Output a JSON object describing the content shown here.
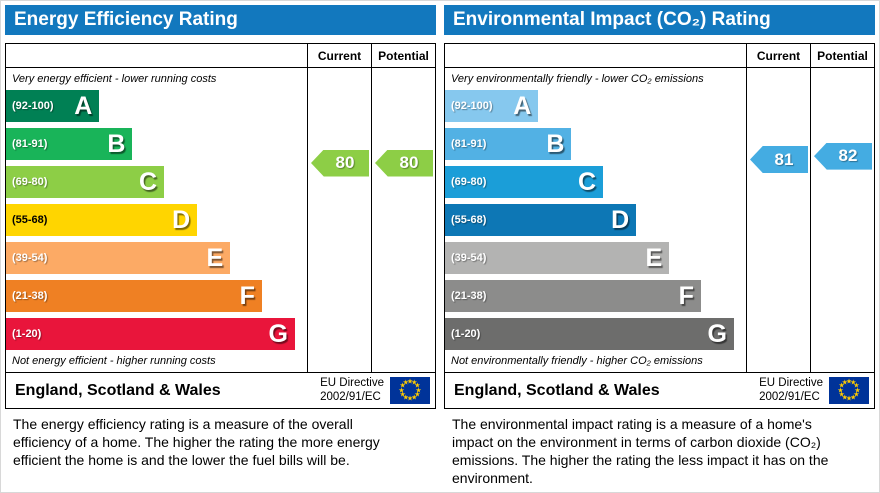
{
  "chart_data": [
    {
      "type": "bar",
      "title": "Energy Efficiency Rating",
      "columns": {
        "current": "Current",
        "potential": "Potential"
      },
      "top_note": "Very energy efficient - lower running costs",
      "bottom_note": "Not energy efficient - higher running costs",
      "bands": [
        {
          "letter": "A",
          "range": "(92-100)",
          "low": 92,
          "high": 100,
          "color": "#008054",
          "width_pct": 31,
          "range_style": "light"
        },
        {
          "letter": "B",
          "range": "(81-91)",
          "low": 81,
          "high": 91,
          "color": "#19b459",
          "width_pct": 42,
          "range_style": "light"
        },
        {
          "letter": "C",
          "range": "(69-80)",
          "low": 69,
          "high": 80,
          "color": "#8dce46",
          "width_pct": 52.5,
          "range_style": "light"
        },
        {
          "letter": "D",
          "range": "(55-68)",
          "low": 55,
          "high": 68,
          "color": "#ffd500",
          "width_pct": 63.5,
          "range_style": "dark"
        },
        {
          "letter": "E",
          "range": "(39-54)",
          "low": 39,
          "high": 54,
          "color": "#fcaa65",
          "width_pct": 74.5,
          "range_style": "light"
        },
        {
          "letter": "F",
          "range": "(21-38)",
          "low": 21,
          "high": 38,
          "color": "#ef8023",
          "width_pct": 85,
          "range_style": "light"
        },
        {
          "letter": "G",
          "range": "(1-20)",
          "low": 1,
          "high": 20,
          "color": "#e9153b",
          "width_pct": 96,
          "range_style": "light"
        }
      ],
      "current": {
        "value": 80,
        "color": "#8dce46"
      },
      "potential": {
        "value": 80,
        "color": "#8dce46"
      },
      "footer": {
        "region": "England, Scotland & Wales",
        "directive_line1": "EU Directive",
        "directive_line2": "2002/91/EC"
      },
      "description": "The energy efficiency rating is a measure of the overall efficiency of a home. The higher the rating the more energy efficient the home is and the lower the fuel bills will be."
    },
    {
      "type": "bar",
      "title": "Environmental Impact (CO₂) Rating",
      "columns": {
        "current": "Current",
        "potential": "Potential"
      },
      "top_note": "Very environmentally friendly - lower CO₂ emissions",
      "bottom_note": "Not environmentally friendly - higher CO₂ emissions",
      "bands": [
        {
          "letter": "A",
          "range": "(92-100)",
          "low": 92,
          "high": 100,
          "color": "#86c8ee",
          "width_pct": 31,
          "range_style": "light"
        },
        {
          "letter": "B",
          "range": "(81-91)",
          "low": 81,
          "high": 91,
          "color": "#52b1e4",
          "width_pct": 42,
          "range_style": "light"
        },
        {
          "letter": "C",
          "range": "(69-80)",
          "low": 69,
          "high": 80,
          "color": "#1b9ed8",
          "width_pct": 52.5,
          "range_style": "light"
        },
        {
          "letter": "D",
          "range": "(55-68)",
          "low": 55,
          "high": 68,
          "color": "#0d77b5",
          "width_pct": 63.5,
          "range_style": "light"
        },
        {
          "letter": "E",
          "range": "(39-54)",
          "low": 39,
          "high": 54,
          "color": "#b3b3b2",
          "width_pct": 74.5,
          "range_style": "light"
        },
        {
          "letter": "F",
          "range": "(21-38)",
          "low": 21,
          "high": 38,
          "color": "#8c8c8b",
          "width_pct": 85,
          "range_style": "light"
        },
        {
          "letter": "G",
          "range": "(1-20)",
          "low": 1,
          "high": 20,
          "color": "#6d6d6c",
          "width_pct": 96,
          "range_style": "light"
        }
      ],
      "current": {
        "value": 81,
        "color": "#44ace2"
      },
      "potential": {
        "value": 82,
        "color": "#44ace2"
      },
      "footer": {
        "region": "England, Scotland & Wales",
        "directive_line1": "EU Directive",
        "directive_line2": "2002/91/EC"
      },
      "description": "The environmental impact rating is a measure of a home's impact on the environment in terms of carbon dioxide (CO₂) emissions. The higher the rating the less impact it has on the environment."
    }
  ],
  "colors": {
    "header_bg": "#1278be",
    "eu_flag_bg": "#003399",
    "eu_star": "#ffcc00"
  }
}
